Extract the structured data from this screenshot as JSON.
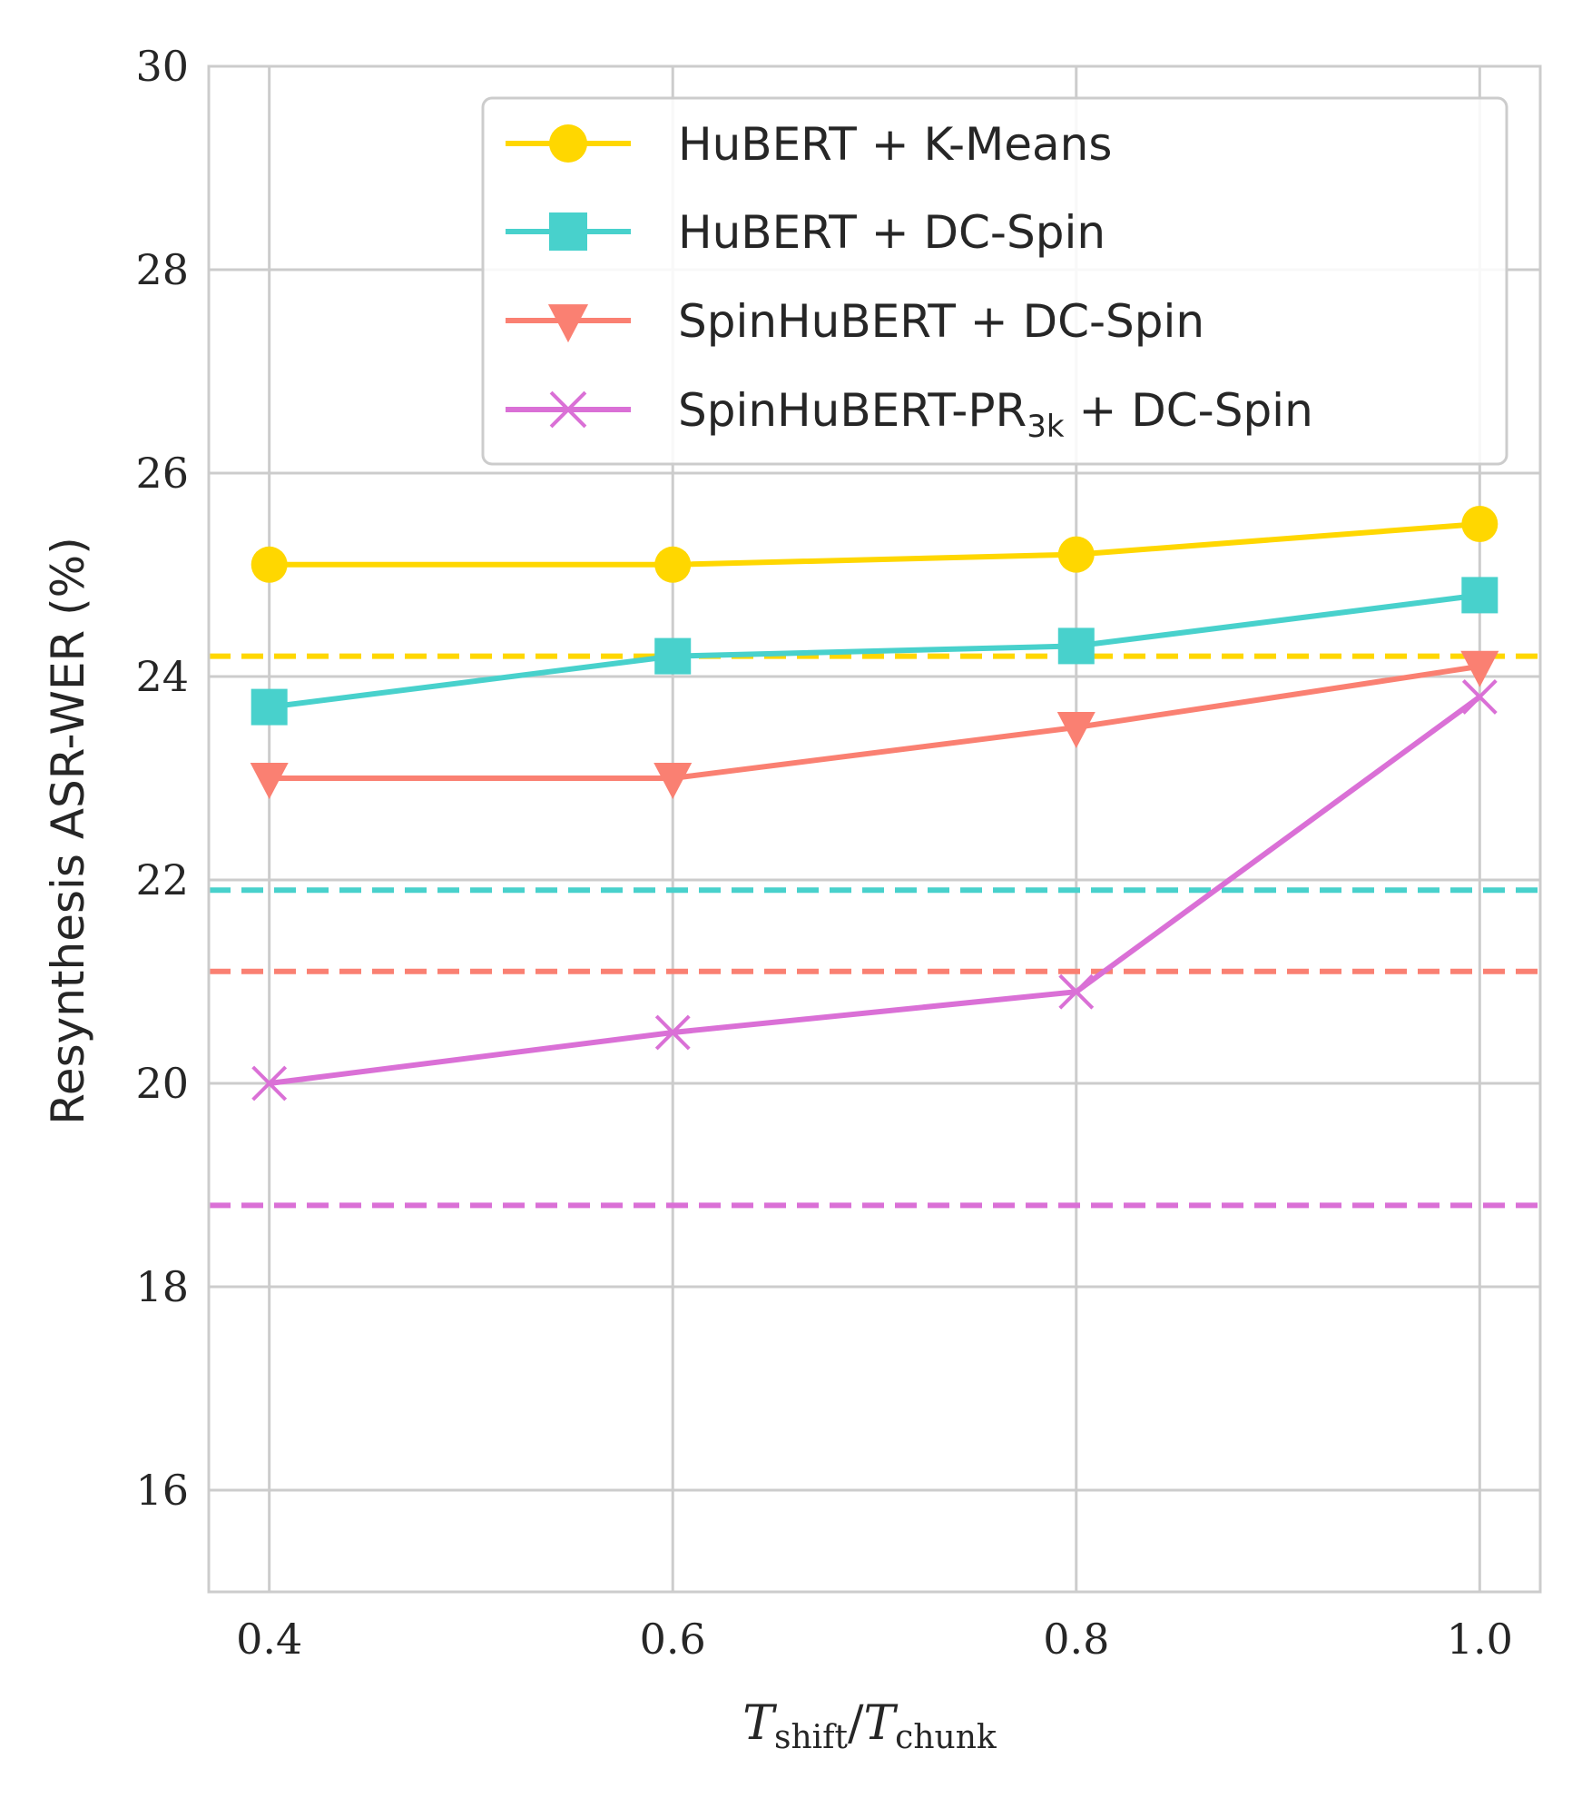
{
  "chart_data": {
    "type": "line",
    "title": "",
    "xlabel": {
      "main": "T",
      "sub1": "shift",
      "sep": "/",
      "main2": "T",
      "sub2": "chunk"
    },
    "ylabel": "Resynthesis ASR-WER (%)",
    "x": [
      0.4,
      0.6,
      0.8,
      1.0
    ],
    "x_tick_labels": [
      "0.4",
      "0.6",
      "0.8",
      "1.0"
    ],
    "xlim": [
      0.37,
      1.03
    ],
    "ylim": [
      15,
      30
    ],
    "y_ticks": [
      16,
      18,
      20,
      22,
      24,
      26,
      28,
      30
    ],
    "y_tick_labels": [
      "16",
      "18",
      "20",
      "22",
      "24",
      "26",
      "28",
      "30"
    ],
    "grid": true,
    "legend_position": "top-right",
    "series": [
      {
        "name": "HuBERT + K-Means",
        "name_parts": {
          "before": "HuBERT + K-Means",
          "sub": "",
          "after": ""
        },
        "color": "#FFD700",
        "marker": "circle",
        "values": [
          25.1,
          25.1,
          25.2,
          25.5
        ],
        "baseline": 24.2
      },
      {
        "name": "HuBERT + DC-Spin",
        "name_parts": {
          "before": "HuBERT + DC-Spin",
          "sub": "",
          "after": ""
        },
        "color": "#48D1CC",
        "marker": "square",
        "values": [
          23.7,
          24.2,
          24.3,
          24.8
        ],
        "baseline": 21.9
      },
      {
        "name": "SpinHuBERT + DC-Spin",
        "name_parts": {
          "before": "SpinHuBERT + DC-Spin",
          "sub": "",
          "after": ""
        },
        "color": "#FA8072",
        "marker": "triangle-down",
        "values": [
          23.0,
          23.0,
          23.5,
          24.1
        ],
        "baseline": 21.1
      },
      {
        "name": "SpinHuBERT-PR3k + DC-Spin",
        "name_parts": {
          "before": "SpinHuBERT-PR",
          "sub": "3k",
          "after": " + DC-Spin"
        },
        "color": "#DA70D6",
        "marker": "x",
        "values": [
          20.0,
          20.5,
          20.9,
          23.8
        ],
        "baseline": 18.8
      }
    ]
  }
}
